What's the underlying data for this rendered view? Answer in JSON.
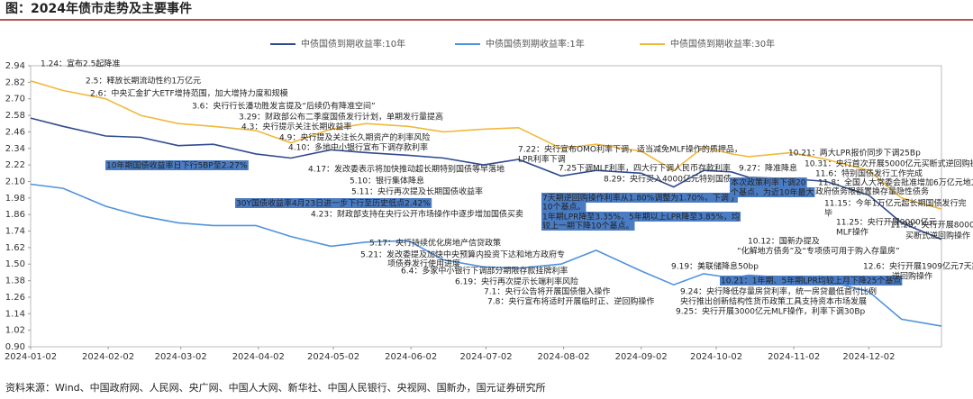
{
  "header": {
    "title": "图：2024年债市走势及主要事件"
  },
  "chart_data": {
    "type": "line",
    "x": [
      "2024-01-02",
      "2024-01-15",
      "2024-02-01",
      "2024-02-15",
      "2024-03-01",
      "2024-03-15",
      "2024-04-01",
      "2024-04-15",
      "2024-05-01",
      "2024-05-15",
      "2024-06-01",
      "2024-06-15",
      "2024-07-01",
      "2024-07-15",
      "2024-08-01",
      "2024-08-15",
      "2024-09-02",
      "2024-09-15",
      "2024-09-27",
      "2024-10-08",
      "2024-10-15",
      "2024-11-01",
      "2024-11-15",
      "2024-12-02",
      "2024-12-15",
      "2024-12-31"
    ],
    "series": [
      {
        "name": "中债国债到期收益率:10年",
        "color": "#2f4b8e",
        "values": [
          2.56,
          2.5,
          2.43,
          2.42,
          2.36,
          2.37,
          2.3,
          2.27,
          2.33,
          2.31,
          2.29,
          2.27,
          2.22,
          2.26,
          2.14,
          2.18,
          2.16,
          2.06,
          2.18,
          2.17,
          2.13,
          2.12,
          2.1,
          2.0,
          1.8,
          1.68
        ]
      },
      {
        "name": "中债国债到期收益率:1年",
        "color": "#4f93db",
        "values": [
          2.08,
          2.05,
          1.92,
          1.85,
          1.8,
          1.78,
          1.78,
          1.7,
          1.63,
          1.66,
          1.67,
          1.53,
          1.48,
          1.47,
          1.5,
          1.6,
          1.45,
          1.35,
          1.43,
          1.4,
          1.42,
          1.4,
          1.38,
          1.3,
          1.1,
          1.05
        ]
      },
      {
        "name": "中债国债到期收益率:30年",
        "color": "#f0b93c",
        "values": [
          2.83,
          2.76,
          2.7,
          2.58,
          2.52,
          2.5,
          2.47,
          2.38,
          2.48,
          2.52,
          2.5,
          2.46,
          2.48,
          2.49,
          2.34,
          2.37,
          2.32,
          2.18,
          2.35,
          2.3,
          2.28,
          2.31,
          2.26,
          2.18,
          1.98,
          1.9
        ]
      }
    ],
    "xlim": [
      "2024-01-02",
      "2024-12-31"
    ],
    "xticks": [
      "2024-01-02",
      "2024-02-02",
      "2024-03-02",
      "2024-04-02",
      "2024-05-02",
      "2024-06-02",
      "2024-07-02",
      "2024-08-02",
      "2024-09-02",
      "2024-10-02",
      "2024-11-02",
      "2024-12-02"
    ],
    "ylim": [
      0.9,
      2.94
    ],
    "yticks": [
      {
        "value": 0.9,
        "label": "0.90"
      },
      1.02,
      1.14,
      1.26,
      1.38,
      {
        "value": 1.5,
        "label": "1.50"
      },
      1.62,
      1.74,
      1.86,
      1.98,
      {
        "value": 2.1,
        "label": "2.10"
      },
      2.22,
      2.34,
      2.46,
      2.58,
      {
        "value": 2.7,
        "label": "2.70"
      },
      2.82,
      2.94
    ],
    "annotations": [
      "1.24：宣布2.5起降准",
      "2.5：释放长期流动性约1万亿元",
      "2.6：中央汇金扩大ETF增持范围，加大增持力度和规模",
      "3.6：央行行长潘功胜发言提及“后续仍有降准空间”",
      "3.29：财政部公布二季度国债发行计划，单期发行量提高",
      "4.3：央行提示关注长期收益率",
      "4.9：央行提及关注长久期资产的利率风险",
      "4.10：多地中小银行宣布下调存款利率",
      "10年期国债收益率日下行5BP至2.27%",
      "4.17：发改委表示将加快推动超长期特别国债等早落地",
      "5.10：银行集体降息",
      "5.11：央行再次提及长期国债收益率",
      "30Y国债收益率4月23日进一步下行至历史低点2.42%",
      "4.23：财政部支持在央行公开市场操作中逐步增加国债买卖",
      "5.17：央行持续优化房地产信贷政策",
      "5.21：发改委提及加快中央预算内投资下达和地方政府专",
      "项债券发行使用进度",
      "6.4：多家中小银行下调部分期限存款挂牌利率",
      "6.19：央行再次提示长端利率风险",
      "7.1：央行公告将开展国债借入操作",
      "7.8：央行宣布将适时开展临时正、逆回购操作",
      "7.22：央行宣布OMO利率下调，适当减免MLF操作的质押品，",
      "LPR利率下调",
      "7.25下调MLF利率，四大行下调人民币存款利率",
      "8.29：央行买入4000亿元特别国债",
      "7天期逆回购操作利率从1.80%调整为1.70%，下调了",
      "10个基点。",
      "1年期LPR降至3.35%，5年期以上LPR降至3.85%，均",
      "较上一期下降10个基点。",
      "9.19：美联储降息50bp",
      "9.24：央行降低存量房贷利率，统一房贷最低首付比例",
      "央行推出创新结构性货币政策工具支持资本市场发展",
      "9.25：央行开展3000亿元MLF操作，利率下调30Bp",
      "10.21：1年期、5年期LPR均较上月下降25个基点",
      "9.27：降准降息",
      "本次政策利率下调20",
      "个基点，为近10年最大",
      "10.21：两大LPR报价同步下调25Bp",
      "10.31：央行首次开展5000亿元买断式逆回购操作",
      "11.6：特别国债发行工作完成",
      "11.8：全国人大常委会批准增加6万亿元地方",
      "政府债务限额置换存量隐性债务",
      "11.15：今年1万亿元超长期国债发行完",
      "毕",
      "11.25：央行开展9000亿元",
      "MLF操作",
      "11.29：央行开展8000亿元",
      "买断式逆回购操作",
      "10.12：国新办提及",
      "“化解地方债务”及“专项债可用于购入存量房”",
      "12.6：央行开展1909亿元7天期",
      "逆回购操作"
    ]
  },
  "footer": {
    "source": "资料来源：Wind、中国政府网、人民网、央广网、中国人大网、新华社、中国人民银行、央视网、国新办，国元证券研究所"
  }
}
